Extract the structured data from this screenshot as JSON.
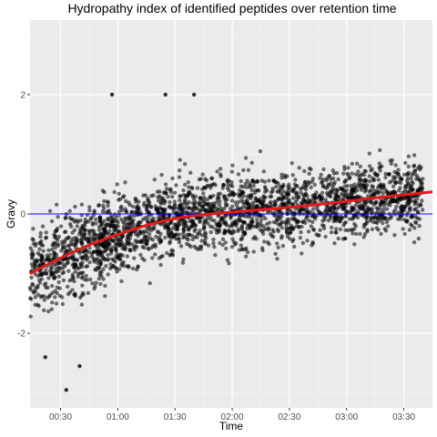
{
  "chart_data": {
    "type": "scatter",
    "title": "Hydropathy index of identified peptides over retention time",
    "xlabel": "Time",
    "ylabel": "Gravy",
    "x_unit": "minutes",
    "xlim": [
      14,
      225
    ],
    "ylim": [
      -3.25,
      3.25
    ],
    "x_ticks": [
      {
        "value": 30,
        "label": "00:30"
      },
      {
        "value": 60,
        "label": "01:00"
      },
      {
        "value": 90,
        "label": "01:30"
      },
      {
        "value": 120,
        "label": "02:00"
      },
      {
        "value": 150,
        "label": "02:30"
      },
      {
        "value": 180,
        "label": "03:00"
      },
      {
        "value": 210,
        "label": "03:30"
      }
    ],
    "y_ticks": [
      {
        "value": -2,
        "label": "-2"
      },
      {
        "value": 0,
        "label": "0"
      },
      {
        "value": 2,
        "label": "2"
      }
    ],
    "grid": true,
    "panel_background": "#ebebeb",
    "point_color": "#000000",
    "point_opacity": 0.55,
    "points_description": "Several thousand identified peptides; density of points approximated with representative samples",
    "hline": {
      "y": 0,
      "color": "#0000ff"
    },
    "trend": {
      "color": "#e31a1c",
      "x": [
        14,
        25,
        35,
        45,
        55,
        65,
        75,
        85,
        95,
        105,
        120,
        135,
        150,
        165,
        180,
        195,
        210,
        225
      ],
      "y": [
        -1.0,
        -0.82,
        -0.66,
        -0.52,
        -0.4,
        -0.29,
        -0.19,
        -0.11,
        -0.05,
        -0.01,
        0.03,
        0.07,
        0.11,
        0.16,
        0.21,
        0.27,
        0.32,
        0.37
      ]
    },
    "notable_points": [
      {
        "x": 33,
        "y": -2.95
      },
      {
        "x": 57,
        "y": 2.0
      },
      {
        "x": 100,
        "y": 2.0
      },
      {
        "x": 85,
        "y": 2.0
      },
      {
        "x": 40,
        "y": -2.55
      },
      {
        "x": 22,
        "y": -2.4
      }
    ]
  }
}
